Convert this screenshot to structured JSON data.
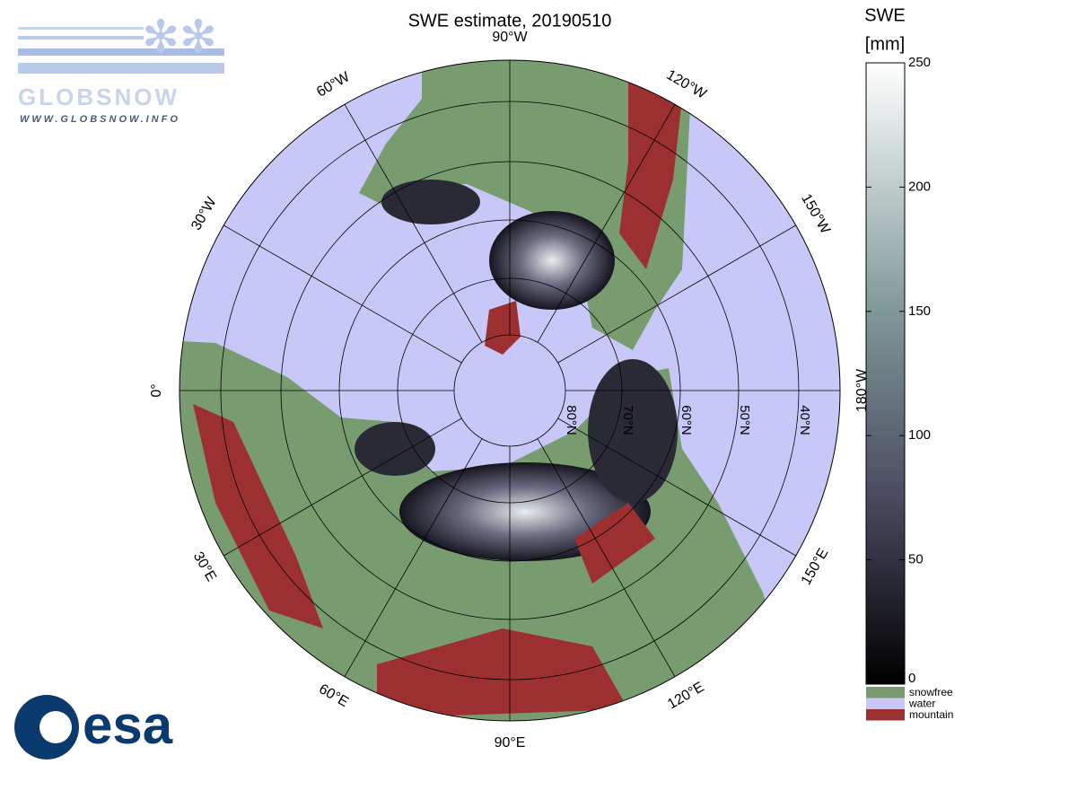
{
  "header": {
    "title": "SWE estimate, 20190510"
  },
  "map": {
    "longitude_labels": [
      {
        "lon": 0,
        "label": "0°"
      },
      {
        "lon": -30,
        "label": "30°W"
      },
      {
        "lon": -60,
        "label": "60°W"
      },
      {
        "lon": -90,
        "label": "90°W"
      },
      {
        "lon": -120,
        "label": "120°W"
      },
      {
        "lon": -150,
        "label": "150°W"
      },
      {
        "lon": 180,
        "label": "180°W"
      },
      {
        "lon": 150,
        "label": "150°E"
      },
      {
        "lon": 120,
        "label": "120°E"
      },
      {
        "lon": 90,
        "label": "90°E"
      },
      {
        "lon": 60,
        "label": "60°E"
      },
      {
        "lon": 30,
        "label": "30°E"
      }
    ],
    "latitude_labels": [
      "80°N",
      "70°N",
      "60°N",
      "50°N",
      "40°N"
    ]
  },
  "colorbar": {
    "title": "SWE",
    "unit": "[mm]",
    "range": [
      0,
      250
    ],
    "ticks": [
      0,
      50,
      100,
      150,
      200,
      250
    ]
  },
  "legend": [
    {
      "label": "snowfree",
      "color": "#789c70"
    },
    {
      "label": "water",
      "color": "#c8c8f8"
    },
    {
      "label": "mountain",
      "color": "#9c3030"
    }
  ],
  "logos": {
    "globsnow": "GLOBSNOW",
    "url": "WWW.GLOBSNOW.INFO",
    "esa": "esa"
  }
}
